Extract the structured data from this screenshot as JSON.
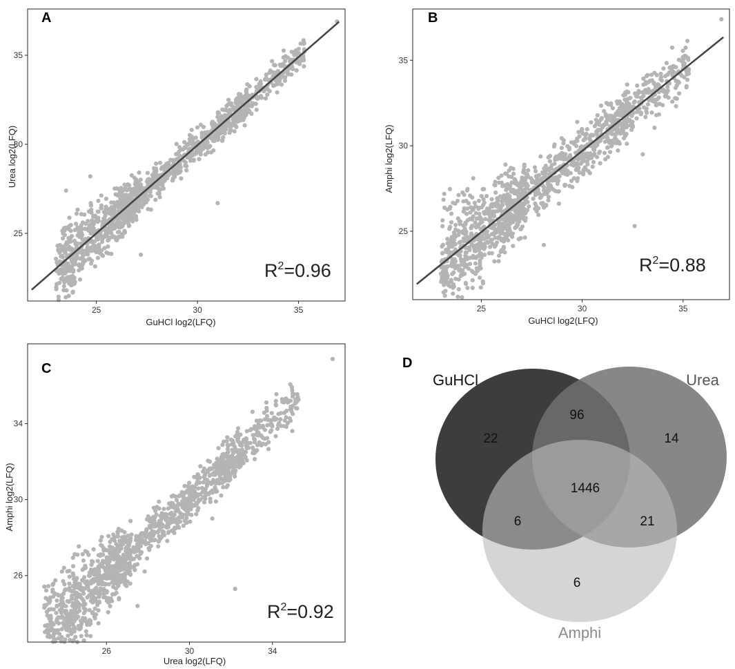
{
  "chart_data": [
    {
      "panel": "A",
      "type": "scatter",
      "xlabel": "GuHCl log2(LFQ)",
      "ylabel": "Urea log2(LFQ)",
      "xticks": [
        25,
        30,
        35
      ],
      "yticks": [
        25,
        30,
        35
      ],
      "xlim": [
        21.6,
        37.3
      ],
      "ylim": [
        21.2,
        37.6
      ],
      "annotation": {
        "prefix": "R",
        "sup": "2",
        "suffix": "=0.96"
      },
      "n_points": 1400,
      "spread": 0.55,
      "fit": {
        "slope": 0.99,
        "intercept": 0.25,
        "x_range": [
          21.8,
          37.0
        ]
      },
      "extremes": [
        [
          36.9,
          36.9
        ],
        [
          31.0,
          26.7
        ],
        [
          23.5,
          27.4
        ],
        [
          27.2,
          23.8
        ],
        [
          24.7,
          28.2
        ]
      ]
    },
    {
      "panel": "B",
      "type": "scatter",
      "xlabel": "GuHCl log2(LFQ)",
      "ylabel": "Amphi log2(LFQ)",
      "xticks": [
        25,
        30,
        35
      ],
      "yticks": [
        25,
        30,
        35
      ],
      "xlim": [
        21.6,
        37.3
      ],
      "ylim": [
        21.0,
        38.0
      ],
      "annotation": {
        "prefix": "R",
        "sup": "2",
        "suffix": "=0.88"
      },
      "n_points": 1400,
      "spread": 0.9,
      "fit": {
        "slope": 0.95,
        "intercept": 1.2,
        "x_range": [
          21.8,
          37.0
        ]
      },
      "extremes": [
        [
          36.9,
          37.4
        ],
        [
          32.6,
          25.3
        ],
        [
          33.0,
          29.5
        ],
        [
          24.6,
          28.1
        ],
        [
          28.1,
          24.2
        ]
      ]
    },
    {
      "panel": "C",
      "type": "scatter",
      "xlabel": "Urea log2(LFQ)",
      "ylabel": "Amphi log2(LFQ)",
      "xticks": [
        26,
        30,
        34
      ],
      "yticks": [
        26,
        30,
        34
      ],
      "xlim": [
        22.2,
        37.5
      ],
      "ylim": [
        22.5,
        38.2
      ],
      "annotation": {
        "prefix": "R",
        "sup": "2",
        "suffix": "=0.92"
      },
      "n_points": 1400,
      "spread": 0.7,
      "fit": null,
      "extremes": [
        [
          36.9,
          37.4
        ],
        [
          32.2,
          25.3
        ],
        [
          24.6,
          27.1
        ],
        [
          27.5,
          24.4
        ],
        [
          31.1,
          29.0
        ]
      ]
    },
    {
      "panel": "D",
      "type": "venn",
      "sets": [
        {
          "name": "GuHCl",
          "color": "#3d3d3d",
          "label_color": "#111111"
        },
        {
          "name": "Urea",
          "color": "#707070",
          "label_color": "#555555"
        },
        {
          "name": "Amphi",
          "color": "#bcbcbc",
          "label_color": "#8a8a8a"
        }
      ],
      "regions": {
        "GuHCl_only": "22",
        "Urea_only": "14",
        "Amphi_only": "6",
        "GuHCl_Urea": "96",
        "GuHCl_Amphi": "6",
        "Urea_Amphi": "21",
        "all": "1446"
      }
    }
  ],
  "colors": {
    "point": "#b4b4b4",
    "fit_line": "#444444",
    "frame": "#222222"
  }
}
